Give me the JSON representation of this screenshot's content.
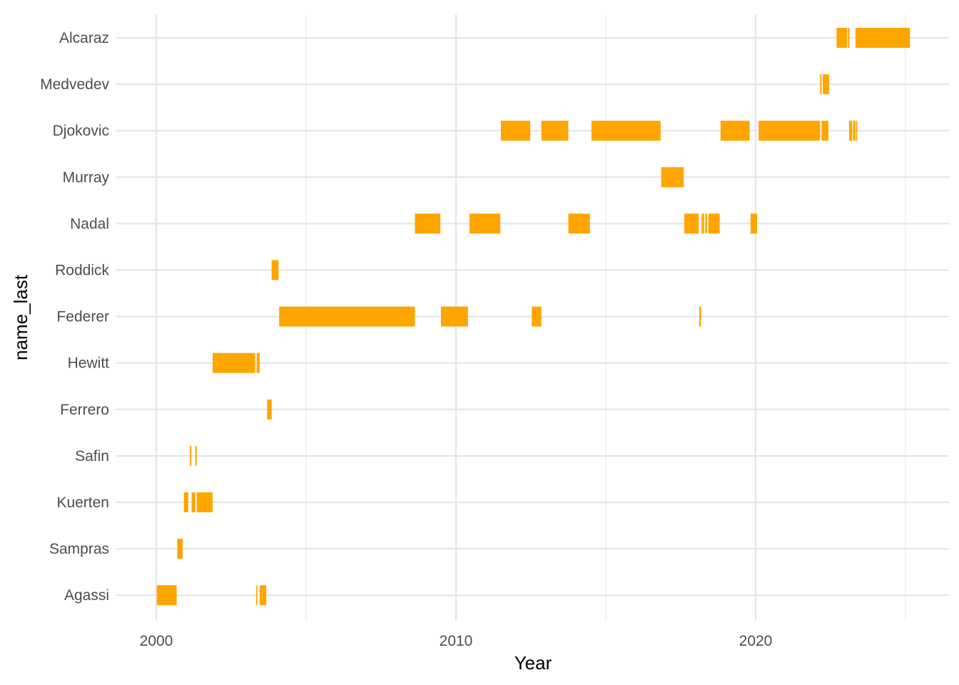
{
  "chart_data": {
    "type": "timeline",
    "title": "",
    "xlabel": "Year",
    "ylabel": "name_last",
    "xlim": [
      1998.7,
      2026.5
    ],
    "x_ticks": [
      2000,
      2010,
      2020
    ],
    "x_tick_labels": [
      "2000",
      "2010",
      "2020"
    ],
    "x_minor_ticks": [
      2005,
      2015,
      2025
    ],
    "grid": true,
    "bar_color": "#FFA500",
    "categories": [
      "Agassi",
      "Sampras",
      "Kuerten",
      "Safin",
      "Ferrero",
      "Hewitt",
      "Federer",
      "Roddick",
      "Nadal",
      "Murray",
      "Djokovic",
      "Medvedev",
      "Alcaraz"
    ],
    "spans": {
      "Alcaraz": [
        [
          2022.7,
          2023.05
        ],
        [
          2023.08,
          2023.13
        ],
        [
          2023.33,
          2025.15
        ]
      ],
      "Medvedev": [
        [
          2022.15,
          2022.2
        ],
        [
          2022.24,
          2022.45
        ]
      ],
      "Djokovic": [
        [
          2011.5,
          2012.48
        ],
        [
          2012.85,
          2013.75
        ],
        [
          2014.52,
          2016.83
        ],
        [
          2018.83,
          2019.8
        ],
        [
          2020.1,
          2022.15
        ],
        [
          2022.2,
          2022.43
        ],
        [
          2023.12,
          2023.22
        ],
        [
          2023.25,
          2023.33
        ],
        [
          2023.35,
          2023.39
        ]
      ],
      "Murray": [
        [
          2016.85,
          2017.6
        ]
      ],
      "Nadal": [
        [
          2008.63,
          2009.48
        ],
        [
          2010.45,
          2011.48
        ],
        [
          2013.75,
          2014.47
        ],
        [
          2017.62,
          2018.1
        ],
        [
          2018.2,
          2018.28
        ],
        [
          2018.32,
          2018.38
        ],
        [
          2018.42,
          2018.8
        ],
        [
          2019.83,
          2020.05
        ]
      ],
      "Roddick": [
        [
          2003.85,
          2004.08
        ]
      ],
      "Federer": [
        [
          2004.1,
          2008.63
        ],
        [
          2009.5,
          2010.4
        ],
        [
          2012.53,
          2012.85
        ],
        [
          2018.12,
          2018.18
        ]
      ],
      "Hewitt": [
        [
          2001.88,
          2003.3
        ],
        [
          2003.35,
          2003.45
        ]
      ],
      "Ferrero": [
        [
          2003.7,
          2003.85
        ]
      ],
      "Safin": [
        [
          2001.12,
          2001.17
        ],
        [
          2001.3,
          2001.35
        ]
      ],
      "Kuerten": [
        [
          2000.92,
          2001.07
        ],
        [
          2001.18,
          2001.3
        ],
        [
          2001.35,
          2001.88
        ]
      ],
      "Sampras": [
        [
          2000.7,
          2000.88
        ]
      ],
      "Agassi": [
        [
          2000.02,
          2000.68
        ],
        [
          2003.33,
          2003.37
        ],
        [
          2003.45,
          2003.67
        ]
      ]
    }
  }
}
